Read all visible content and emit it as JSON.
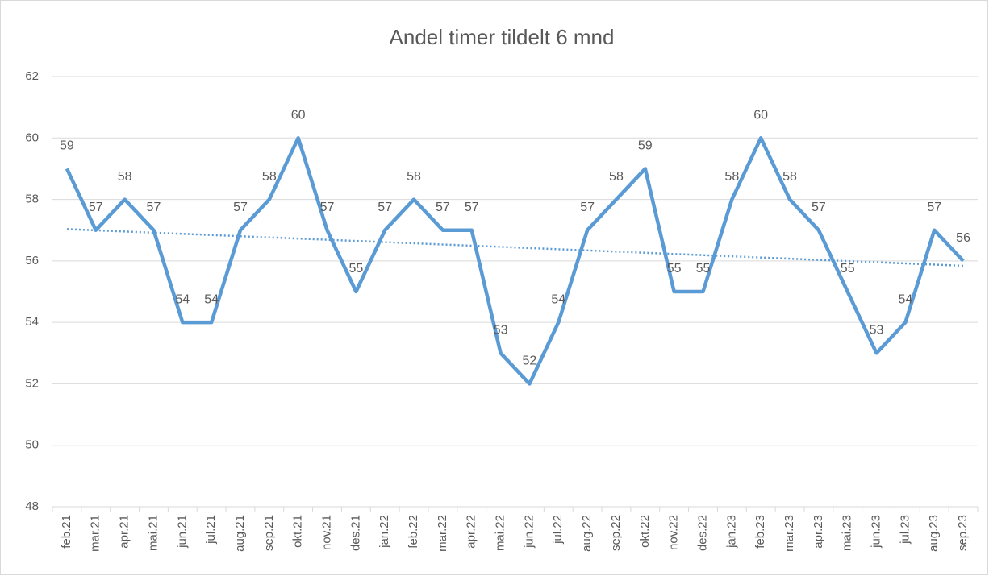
{
  "chart_data": {
    "type": "line",
    "title": "Andel timer tildelt 6 mnd",
    "categories": [
      "feb.21",
      "mar.21",
      "apr.21",
      "mai.21",
      "jun.21",
      "jul.21",
      "aug.21",
      "sep.21",
      "okt.21",
      "nov.21",
      "des.21",
      "jan.22",
      "feb.22",
      "mar.22",
      "apr.22",
      "mai.22",
      "jun.22",
      "jul.22",
      "aug.22",
      "sep.22",
      "okt.22",
      "nov.22",
      "des.22",
      "jan.23",
      "feb.23",
      "mar.23",
      "apr.23",
      "mai.23",
      "jun.23",
      "jul.23",
      "aug.23",
      "sep.23"
    ],
    "series": [
      {
        "name": "Andel timer tildelt 6 mnd",
        "color": "#5b9bd5",
        "values": [
          59,
          57,
          58,
          57,
          54,
          54,
          57,
          58,
          60,
          57,
          55,
          57,
          58,
          57,
          57,
          53,
          52,
          54,
          57,
          58,
          59,
          55,
          55,
          58,
          60,
          58,
          57,
          55,
          53,
          54,
          57,
          56
        ]
      }
    ],
    "ylim": [
      48,
      62
    ],
    "yticks": [
      48,
      50,
      52,
      54,
      56,
      58,
      60,
      62
    ],
    "grid": true,
    "trendline": true,
    "data_labels": true
  }
}
